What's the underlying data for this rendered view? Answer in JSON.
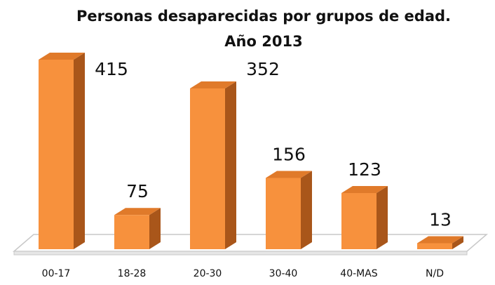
{
  "chart_data": {
    "type": "bar3d",
    "title": "Personas desaparecidas por grupos de edad.",
    "subtitle": "Año  2013",
    "categories": [
      "00-17",
      "18-28",
      "20-30",
      "30-40",
      "40-MAS",
      "N/D"
    ],
    "values": [
      415,
      75,
      352,
      156,
      123,
      13
    ],
    "color": "#f7913d"
  }
}
